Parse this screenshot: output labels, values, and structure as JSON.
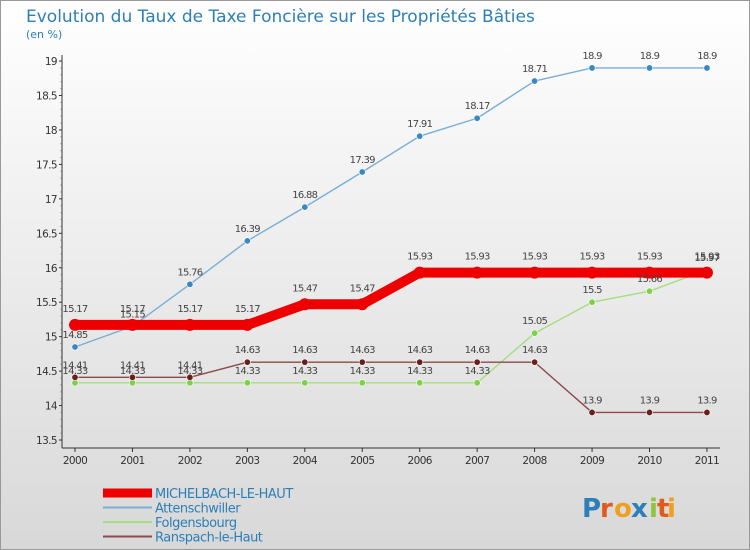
{
  "chart_data": {
    "type": "line",
    "title": "Evolution du Taux de Taxe Foncière sur les Propriétés Bâties",
    "subtitle": "(en %)",
    "xlabel": "",
    "ylabel": "(en %)",
    "ylim": [
      13.5,
      19
    ],
    "grid": false,
    "legend_position": "bottom-left",
    "categories": [
      "2000",
      "2001",
      "2002",
      "2003",
      "2004",
      "2005",
      "2006",
      "2007",
      "2008",
      "2009",
      "2010",
      "2011"
    ],
    "y_ticks": [
      "13.5",
      "14",
      "14.5",
      "15",
      "15.5",
      "16",
      "16.5",
      "17",
      "17.5",
      "18",
      "18.5",
      "19"
    ],
    "series": [
      {
        "name": "MICHELBACH-LE-HAUT",
        "color": "#ee0000",
        "marker": "#ee0000",
        "thick": true,
        "values": [
          15.17,
          15.17,
          15.17,
          15.17,
          15.47,
          15.47,
          15.93,
          15.93,
          15.93,
          15.93,
          15.93,
          15.93
        ],
        "labels": [
          "15.17",
          "15.17",
          "15.17",
          "15.17",
          "15.47",
          "15.47",
          "15.93",
          "15.93",
          "15.93",
          "15.93",
          "15.93",
          "15.93"
        ]
      },
      {
        "name": "Attenschwiller",
        "color": "#7aaed6",
        "marker": "#3a87c6",
        "thick": false,
        "values": [
          14.85,
          15.15,
          15.76,
          16.39,
          16.88,
          17.39,
          17.91,
          18.17,
          18.71,
          18.9,
          18.9,
          18.9
        ],
        "labels": [
          "14.85",
          "15.15",
          "15.76",
          "16.39",
          "16.88",
          "17.39",
          "17.91",
          "18.17",
          "18.71",
          "18.9",
          "18.9",
          "18.9"
        ]
      },
      {
        "name": "Folgensbourg",
        "color": "#a6dd7f",
        "marker": "#7ed04a",
        "thick": false,
        "values": [
          14.33,
          14.33,
          14.33,
          14.33,
          14.33,
          14.33,
          14.33,
          14.33,
          15.05,
          15.5,
          15.66,
          15.97
        ],
        "labels": [
          "14.33",
          "14.33",
          "14.33",
          "14.33",
          "14.33",
          "14.33",
          "14.33",
          "14.33",
          "15.05",
          "15.5",
          "15.66",
          "15.97"
        ]
      },
      {
        "name": "Ranspach-le-Haut",
        "color": "#8c4a4a",
        "marker": "#6b1e1e",
        "thick": false,
        "values": [
          14.41,
          14.41,
          14.41,
          14.63,
          14.63,
          14.63,
          14.63,
          14.63,
          14.63,
          13.9,
          13.9,
          13.9
        ],
        "labels": [
          "14.41",
          "14.41",
          "14.41",
          "14.63",
          "14.63",
          "14.63",
          "14.63",
          "14.63",
          "14.63",
          "13.9",
          "13.9",
          "13.9"
        ]
      }
    ]
  },
  "logo": {
    "letters": [
      "P",
      "r",
      "o",
      "x",
      "i",
      "t",
      "i"
    ],
    "colors": [
      "#2c7fb8",
      "#e05a1c",
      "#f0a020",
      "#2c7fb8",
      "#8cc63f",
      "#e05a1c",
      "#f0a020"
    ]
  }
}
